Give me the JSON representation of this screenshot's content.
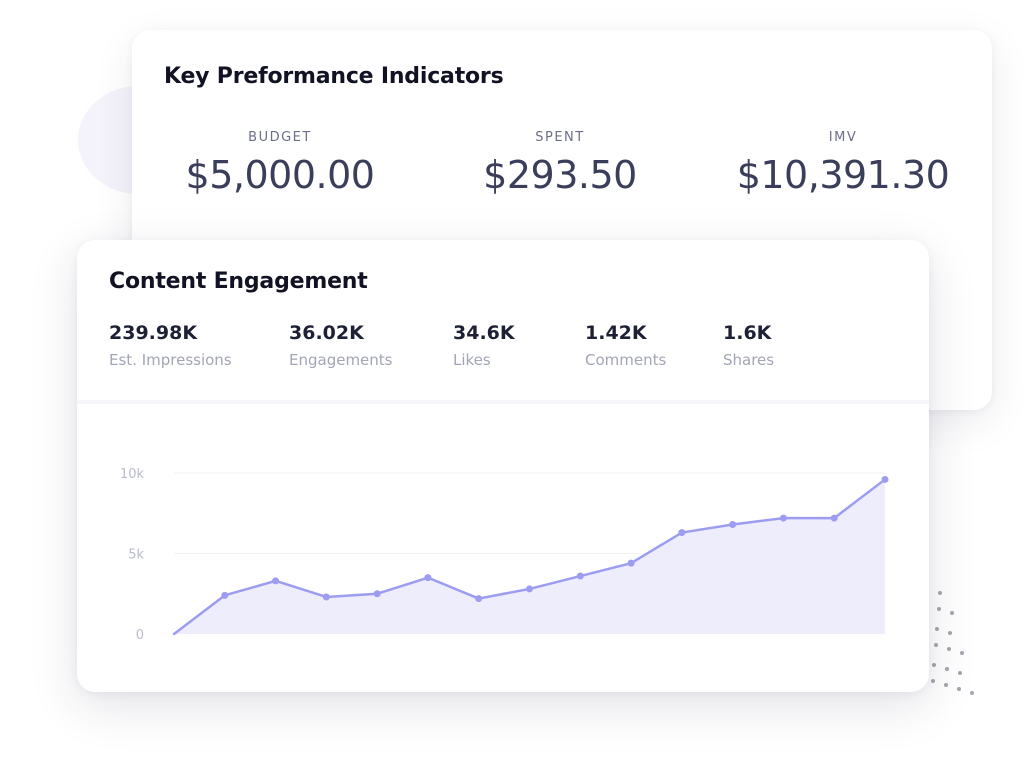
{
  "kpi": {
    "title": "Key Preformance Indicators",
    "items": [
      {
        "label": "BUDGET",
        "value": "$5,000.00"
      },
      {
        "label": "SPENT",
        "value": "$293.50"
      },
      {
        "label": "IMV",
        "value": "$10,391.30"
      }
    ]
  },
  "engagement": {
    "title": "Content Engagement",
    "metrics": [
      {
        "value": "239.98K",
        "label": "Est. Impressions"
      },
      {
        "value": "36.02K",
        "label": "Engagements"
      },
      {
        "value": "34.6K",
        "label": "Likes"
      },
      {
        "value": "1.42K",
        "label": "Comments"
      },
      {
        "value": "1.6K",
        "label": "Shares"
      }
    ]
  },
  "chart_data": {
    "type": "area",
    "x": [
      0,
      1,
      2,
      3,
      4,
      5,
      6,
      7,
      8,
      9,
      10,
      11,
      12,
      13,
      14
    ],
    "series": [
      {
        "values": [
          0,
          2400,
          3300,
          2300,
          2500,
          3500,
          2200,
          2800,
          3600,
          4400,
          6300,
          6800,
          7200,
          7200,
          9600
        ]
      }
    ],
    "yticks": [
      "0",
      "5k",
      "10k"
    ],
    "ytick_values": [
      0,
      5000,
      10000
    ],
    "ylim": [
      0,
      10000
    ],
    "grid": true,
    "colors": {
      "line": "#9c9cf0",
      "fill": "#eeedfc",
      "point": "#9c9cf0",
      "grid": "#f1f1f6"
    }
  }
}
